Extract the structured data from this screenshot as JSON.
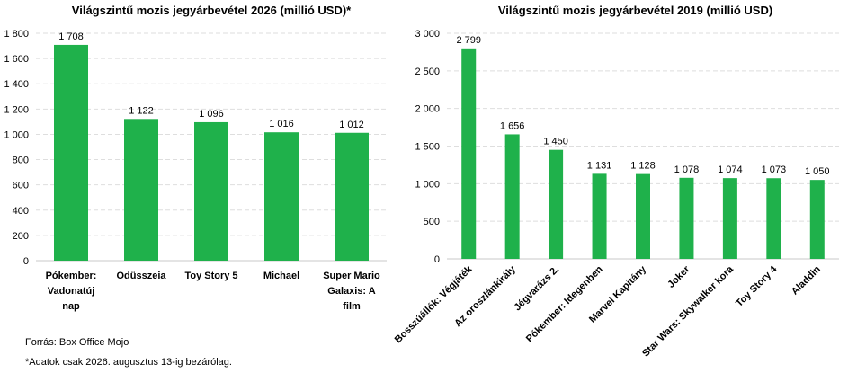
{
  "chart_data": [
    {
      "type": "bar",
      "title": "Világszintű mozis jegyárbevétel 2026 (millió USD)*",
      "categories": [
        "Pókember: Vadonatúj nap",
        "Odüsszeia",
        "Toy Story 5",
        "Michael",
        "Super Mario Galaxis: A film"
      ],
      "values": [
        1708,
        1122,
        1096,
        1016,
        1012
      ],
      "data_labels": [
        "1 708",
        "1 122",
        "1 096",
        "1 016",
        "1 012"
      ],
      "yticks": [
        "0",
        "200",
        "400",
        "600",
        "800",
        "1 000",
        "1 200",
        "1 400",
        "1 600",
        "1 800"
      ],
      "ylim": [
        0,
        1800
      ],
      "color": "#1fb14b",
      "grid": true
    },
    {
      "type": "bar",
      "title": "Világszintű mozis jegyárbevétel 2019 (millió USD)",
      "categories": [
        "Bosszúállók: Végjáték",
        "Az oroszlánkirály",
        "Jégvarázs 2.",
        "Pókember: Idegenben",
        "Marvel Kapitány",
        "Joker",
        "Star Wars: Skywalker kora",
        "Toy Story 4",
        "Aladdin"
      ],
      "values": [
        2799,
        1656,
        1450,
        1131,
        1128,
        1078,
        1074,
        1073,
        1050
      ],
      "data_labels": [
        "2 799",
        "1 656",
        "1 450",
        "1 131",
        "1 128",
        "1 078",
        "1 074",
        "1 073",
        "1 050"
      ],
      "yticks": [
        "0",
        "500",
        "1 000",
        "1 500",
        "2 000",
        "2 500",
        "3 000"
      ],
      "ylim": [
        0,
        3000
      ],
      "color": "#1fb14b",
      "grid": true
    }
  ],
  "footer": {
    "source": "Forrás: Box Office Mojo",
    "note": "*Adatok csak 2026. augusztus 13-ig bezárólag."
  }
}
